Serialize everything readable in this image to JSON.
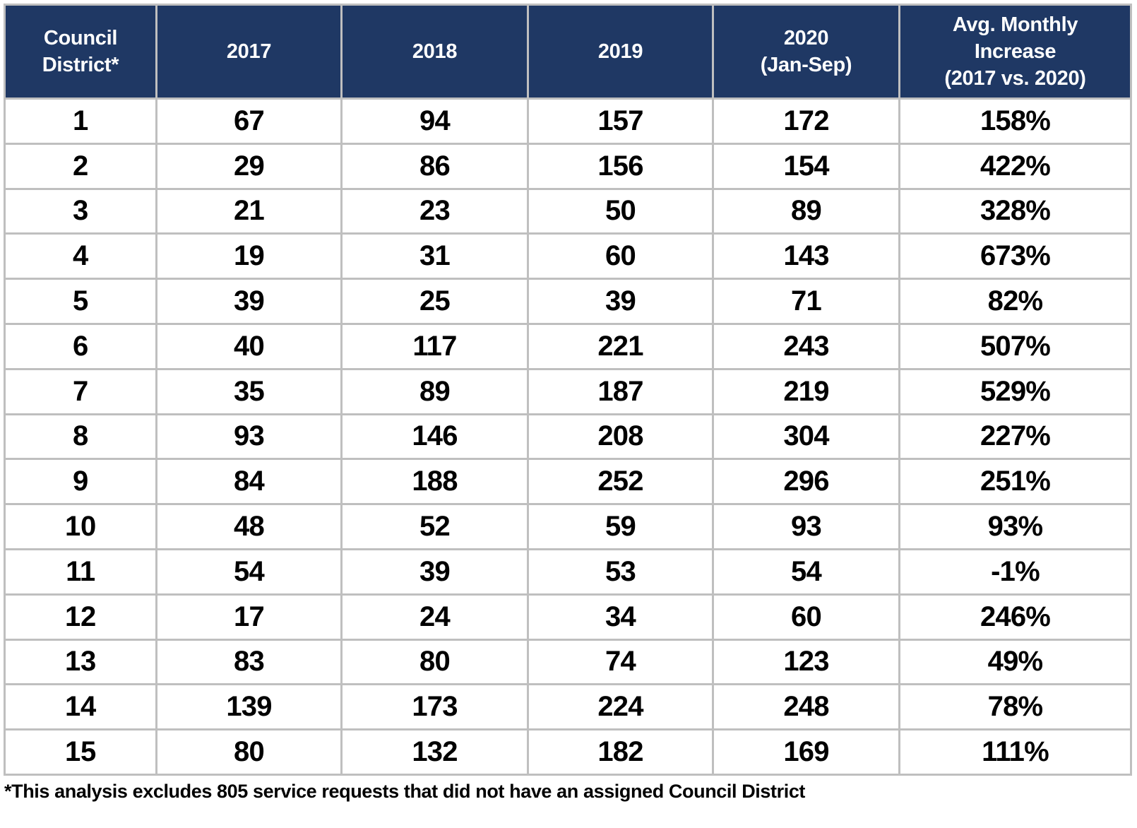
{
  "colors": {
    "header_bg": "#1F3864",
    "header_text": "#FFFFFF",
    "grid_line": "#BFBFBF",
    "cell_text": "#000000"
  },
  "table": {
    "headers": [
      "Council\nDistrict*",
      "2017",
      "2018",
      "2019",
      "2020\n(Jan-Sep)",
      "Avg. Monthly\nIncrease\n(2017 vs. 2020)"
    ],
    "rows": [
      [
        "1",
        "67",
        "94",
        "157",
        "172",
        "158%"
      ],
      [
        "2",
        "29",
        "86",
        "156",
        "154",
        "422%"
      ],
      [
        "3",
        "21",
        "23",
        "50",
        "89",
        "328%"
      ],
      [
        "4",
        "19",
        "31",
        "60",
        "143",
        "673%"
      ],
      [
        "5",
        "39",
        "25",
        "39",
        "71",
        "82%"
      ],
      [
        "6",
        "40",
        "117",
        "221",
        "243",
        "507%"
      ],
      [
        "7",
        "35",
        "89",
        "187",
        "219",
        "529%"
      ],
      [
        "8",
        "93",
        "146",
        "208",
        "304",
        "227%"
      ],
      [
        "9",
        "84",
        "188",
        "252",
        "296",
        "251%"
      ],
      [
        "10",
        "48",
        "52",
        "59",
        "93",
        "93%"
      ],
      [
        "11",
        "54",
        "39",
        "53",
        "54",
        "-1%"
      ],
      [
        "12",
        "17",
        "24",
        "34",
        "60",
        "246%"
      ],
      [
        "13",
        "83",
        "80",
        "74",
        "123",
        "49%"
      ],
      [
        "14",
        "139",
        "173",
        "224",
        "248",
        "78%"
      ],
      [
        "15",
        "80",
        "132",
        "182",
        "169",
        "111%"
      ]
    ]
  },
  "footnote": "*This analysis excludes 805 service requests that did not have an assigned Council District",
  "chart_data": {
    "type": "table",
    "columns": [
      "Council District*",
      "2017",
      "2018",
      "2019",
      "2020 (Jan-Sep)",
      "Avg. Monthly Increase (2017 vs. 2020)"
    ],
    "rows": [
      [
        1,
        67,
        94,
        157,
        172,
        "158%"
      ],
      [
        2,
        29,
        86,
        156,
        154,
        "422%"
      ],
      [
        3,
        21,
        23,
        50,
        89,
        "328%"
      ],
      [
        4,
        19,
        31,
        60,
        143,
        "673%"
      ],
      [
        5,
        39,
        25,
        39,
        71,
        "82%"
      ],
      [
        6,
        40,
        117,
        221,
        243,
        "507%"
      ],
      [
        7,
        35,
        89,
        187,
        219,
        "529%"
      ],
      [
        8,
        93,
        146,
        208,
        304,
        "227%"
      ],
      [
        9,
        84,
        188,
        252,
        296,
        "251%"
      ],
      [
        10,
        48,
        52,
        59,
        93,
        "93%"
      ],
      [
        11,
        54,
        39,
        53,
        54,
        "-1%"
      ],
      [
        12,
        17,
        24,
        34,
        60,
        "246%"
      ],
      [
        13,
        83,
        80,
        74,
        123,
        "49%"
      ],
      [
        14,
        139,
        173,
        224,
        248,
        "78%"
      ],
      [
        15,
        80,
        132,
        182,
        169,
        "111%"
      ]
    ],
    "footnote": "*This analysis excludes 805 service requests that did not have an assigned Council District"
  }
}
